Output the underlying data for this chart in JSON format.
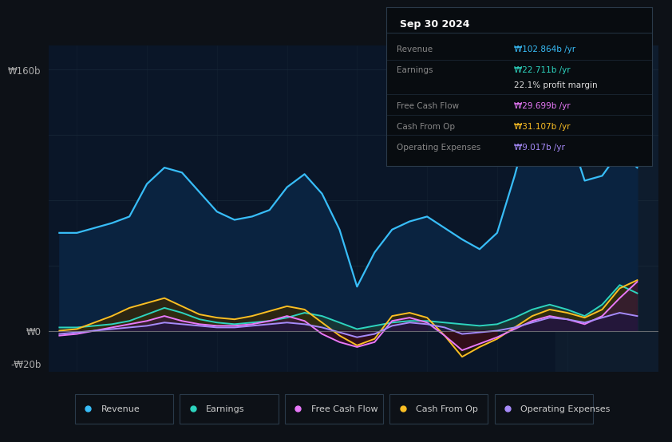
{
  "bg_color": "#0d1117",
  "chart_bg": "#0d1b2e",
  "plot_bg": "#0a1628",
  "grid_color": "#1a2a3a",
  "shaded_bg": "#111f30",
  "title_box_bg": "#080c10",
  "title_box_border": "#2a3a4a",
  "title_box": {
    "date": "Sep 30 2024",
    "rows": [
      {
        "label": "Revenue",
        "value": "₩102.864b /yr",
        "value_color": "#38bdf8"
      },
      {
        "label": "Earnings",
        "value": "₩22.711b /yr",
        "value_color": "#2dd4bf"
      },
      {
        "label": "",
        "value": "22.1% profit margin",
        "value_color": "#dddddd"
      },
      {
        "label": "Free Cash Flow",
        "value": "₩29.699b /yr",
        "value_color": "#e879f9"
      },
      {
        "label": "Cash From Op",
        "value": "₩31.107b /yr",
        "value_color": "#fbbf24"
      },
      {
        "label": "Operating Expenses",
        "value": "₩9.017b /yr",
        "value_color": "#a78bfa"
      }
    ]
  },
  "ylim": [
    -25,
    175
  ],
  "xlim_start": 2016.6,
  "xlim_end": 2025.3,
  "xticks": [
    2017,
    2018,
    2019,
    2020,
    2021,
    2022,
    2023,
    2024
  ],
  "revenue_color": "#38bdf8",
  "revenue_fill": "#0a2340",
  "earnings_color": "#2dd4bf",
  "earnings_fill_pos": "#1a3a35",
  "fcf_color": "#e879f9",
  "fcf_fill_pos": "#3a1540",
  "fcf_fill_neg": "#3a0a20",
  "cashfromop_color": "#fbbf24",
  "cashfromop_fill_pos": "#3a2800",
  "cashfromop_fill_neg": "#2a1a00",
  "opex_color": "#a78bfa",
  "opex_fill": "#1e1540",
  "zero_line_color": "#888888",
  "label_color": "#aaaaaa",
  "tick_color": "#888888",
  "shaded_region_start": 2023.83,
  "legend": [
    {
      "label": "Revenue",
      "color": "#38bdf8"
    },
    {
      "label": "Earnings",
      "color": "#2dd4bf"
    },
    {
      "label": "Free Cash Flow",
      "color": "#e879f9"
    },
    {
      "label": "Cash From Op",
      "color": "#fbbf24"
    },
    {
      "label": "Operating Expenses",
      "color": "#a78bfa"
    }
  ],
  "revenue_x": [
    2016.75,
    2017.0,
    2017.25,
    2017.5,
    2017.75,
    2018.0,
    2018.25,
    2018.5,
    2018.75,
    2019.0,
    2019.25,
    2019.5,
    2019.75,
    2020.0,
    2020.25,
    2020.5,
    2020.75,
    2021.0,
    2021.25,
    2021.5,
    2021.75,
    2022.0,
    2022.25,
    2022.5,
    2022.75,
    2023.0,
    2023.25,
    2023.5,
    2023.75,
    2024.0,
    2024.25,
    2024.5,
    2024.75,
    2025.0
  ],
  "revenue_y": [
    60,
    60,
    63,
    66,
    70,
    90,
    100,
    97,
    85,
    73,
    68,
    70,
    74,
    88,
    96,
    84,
    62,
    27,
    48,
    62,
    67,
    70,
    63,
    56,
    50,
    60,
    95,
    135,
    155,
    125,
    92,
    95,
    110,
    100
  ],
  "earnings_x": [
    2016.75,
    2017.0,
    2017.25,
    2017.5,
    2017.75,
    2018.0,
    2018.25,
    2018.5,
    2018.75,
    2019.0,
    2019.25,
    2019.5,
    2019.75,
    2020.0,
    2020.25,
    2020.5,
    2020.75,
    2021.0,
    2021.25,
    2021.5,
    2021.75,
    2022.0,
    2022.25,
    2022.5,
    2022.75,
    2023.0,
    2023.25,
    2023.5,
    2023.75,
    2024.0,
    2024.25,
    2024.5,
    2024.75,
    2025.0
  ],
  "earnings_y": [
    2,
    2,
    3,
    4,
    6,
    10,
    14,
    11,
    7,
    5,
    4,
    5,
    6,
    8,
    11,
    9,
    5,
    1,
    3,
    5,
    6,
    6,
    5,
    4,
    3,
    4,
    8,
    13,
    16,
    13,
    9,
    16,
    28,
    23
  ],
  "fcf_x": [
    2016.75,
    2017.0,
    2017.25,
    2017.5,
    2017.75,
    2018.0,
    2018.25,
    2018.5,
    2018.75,
    2019.0,
    2019.25,
    2019.5,
    2019.75,
    2020.0,
    2020.25,
    2020.5,
    2020.75,
    2021.0,
    2021.25,
    2021.5,
    2021.75,
    2022.0,
    2022.25,
    2022.5,
    2022.75,
    2023.0,
    2023.25,
    2023.5,
    2023.75,
    2024.0,
    2024.25,
    2024.5,
    2024.75,
    2025.0
  ],
  "fcf_y": [
    -3,
    -2,
    0,
    2,
    4,
    6,
    9,
    6,
    4,
    3,
    3,
    4,
    6,
    9,
    6,
    -2,
    -7,
    -10,
    -7,
    6,
    8,
    5,
    -3,
    -12,
    -8,
    -4,
    1,
    6,
    9,
    7,
    4,
    9,
    20,
    30
  ],
  "cop_x": [
    2016.75,
    2017.0,
    2017.25,
    2017.5,
    2017.75,
    2018.0,
    2018.25,
    2018.5,
    2018.75,
    2019.0,
    2019.25,
    2019.5,
    2019.75,
    2020.0,
    2020.25,
    2020.5,
    2020.75,
    2021.0,
    2021.25,
    2021.5,
    2021.75,
    2022.0,
    2022.25,
    2022.5,
    2022.75,
    2023.0,
    2023.25,
    2023.5,
    2023.75,
    2024.0,
    2024.25,
    2024.5,
    2024.75,
    2025.0
  ],
  "cop_y": [
    0,
    1,
    5,
    9,
    14,
    17,
    20,
    15,
    10,
    8,
    7,
    9,
    12,
    15,
    13,
    5,
    -3,
    -9,
    -5,
    9,
    11,
    8,
    -3,
    -16,
    -10,
    -5,
    2,
    9,
    13,
    11,
    8,
    13,
    26,
    31
  ],
  "opex_x": [
    2016.75,
    2017.0,
    2017.25,
    2017.5,
    2017.75,
    2018.0,
    2018.25,
    2018.5,
    2018.75,
    2019.0,
    2019.25,
    2019.5,
    2019.75,
    2020.0,
    2020.25,
    2020.5,
    2020.75,
    2021.0,
    2021.25,
    2021.5,
    2021.75,
    2022.0,
    2022.25,
    2022.5,
    2022.75,
    2023.0,
    2023.25,
    2023.5,
    2023.75,
    2024.0,
    2024.25,
    2024.5,
    2024.75,
    2025.0
  ],
  "opex_y": [
    -2,
    -1,
    0,
    1,
    2,
    3,
    5,
    4,
    3,
    2,
    2,
    3,
    4,
    5,
    4,
    2,
    -1,
    -4,
    -2,
    3,
    5,
    4,
    2,
    -2,
    -1,
    0,
    2,
    5,
    8,
    7,
    5,
    8,
    11,
    9
  ]
}
